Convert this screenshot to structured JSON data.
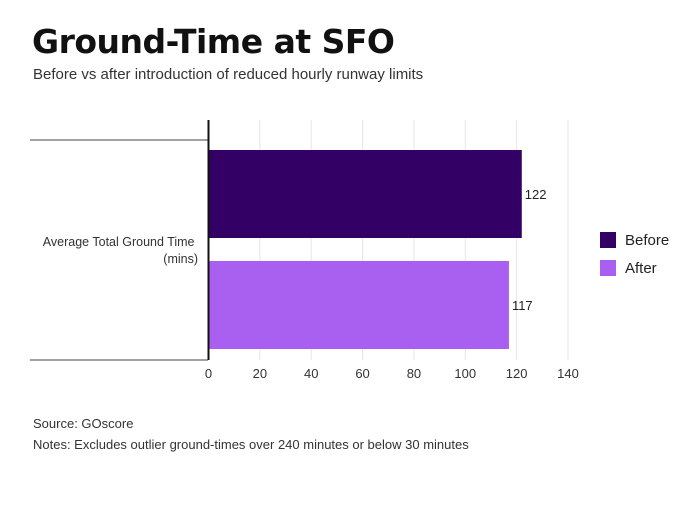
{
  "header": {
    "title": "Ground-Time at SFO",
    "subtitle": "Before vs after introduction of reduced hourly runway limits"
  },
  "footer": {
    "source": "Source: GOscore",
    "notes": "Notes: Excludes outlier ground-times over 240 minutes or below 30 minutes"
  },
  "chart_data": {
    "type": "bar",
    "orientation": "horizontal",
    "categories": [
      "Average Total Ground Time (mins)"
    ],
    "category_label_lines": [
      "Average Total Ground Time",
      "(mins)"
    ],
    "series": [
      {
        "name": "Before",
        "values": [
          122
        ],
        "color": "#330066"
      },
      {
        "name": "After",
        "values": [
          117
        ],
        "color": "#a95ff0"
      }
    ],
    "xlim": [
      0,
      140
    ],
    "xticks": [
      0,
      20,
      40,
      60,
      80,
      100,
      120,
      140
    ],
    "grid": true,
    "legend_placement": "right",
    "data_labels": true
  }
}
